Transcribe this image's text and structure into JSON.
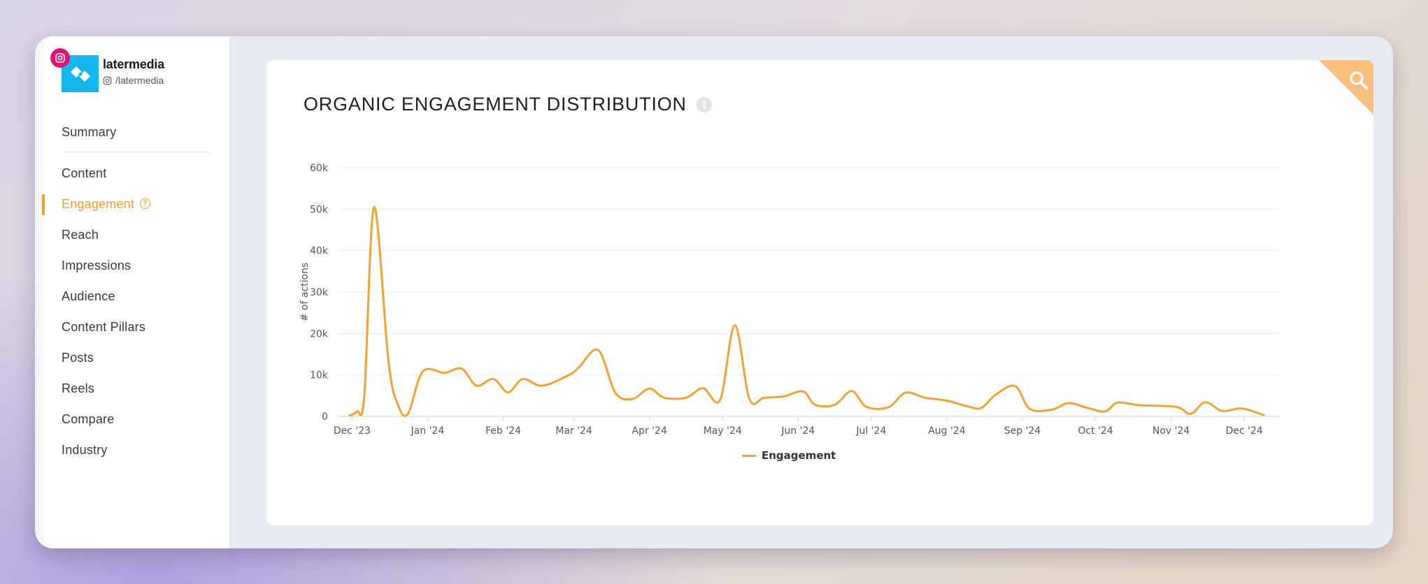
{
  "brand": {
    "name": "latermedia",
    "handle": "/latermedia"
  },
  "sidebar": {
    "items": [
      {
        "label": "Summary",
        "active": false
      },
      {
        "label": "Content",
        "active": false
      },
      {
        "label": "Engagement",
        "active": true,
        "help": true
      },
      {
        "label": "Reach",
        "active": false
      },
      {
        "label": "Impressions",
        "active": false
      },
      {
        "label": "Audience",
        "active": false
      },
      {
        "label": "Content Pillars",
        "active": false
      },
      {
        "label": "Posts",
        "active": false
      },
      {
        "label": "Reels",
        "active": false
      },
      {
        "label": "Compare",
        "active": false
      },
      {
        "label": "Industry",
        "active": false
      }
    ]
  },
  "main": {
    "title": "ORGANIC ENGAGEMENT DISTRIBUTION",
    "info_icon": "i"
  },
  "colors": {
    "accent": "#f29d33",
    "series": "#f5a32f",
    "brand": "#14b8ef",
    "instagram": "#e2136e"
  },
  "chart_data": {
    "type": "line",
    "ylabel": "# of actions",
    "ylim": [
      0,
      60000
    ],
    "yticks": [
      {
        "value": 0,
        "label": "0"
      },
      {
        "value": 10000,
        "label": "10k"
      },
      {
        "value": 20000,
        "label": "20k"
      },
      {
        "value": 30000,
        "label": "30k"
      },
      {
        "value": 40000,
        "label": "40k"
      },
      {
        "value": 50000,
        "label": "50k"
      },
      {
        "value": 60000,
        "label": "60k"
      }
    ],
    "xlim": [
      "2023-11-28",
      "2024-12-13"
    ],
    "xticks": [
      {
        "date": "2023-12-01",
        "label": "Dec '23"
      },
      {
        "date": "2024-01-01",
        "label": "Jan '24"
      },
      {
        "date": "2024-02-01",
        "label": "Feb '24"
      },
      {
        "date": "2024-03-01",
        "label": "Mar '24"
      },
      {
        "date": "2024-04-01",
        "label": "Apr '24"
      },
      {
        "date": "2024-05-01",
        "label": "May '24"
      },
      {
        "date": "2024-06-01",
        "label": "Jun '24"
      },
      {
        "date": "2024-07-01",
        "label": "Jul '24"
      },
      {
        "date": "2024-08-01",
        "label": "Aug '24"
      },
      {
        "date": "2024-09-01",
        "label": "Sep '24"
      },
      {
        "date": "2024-10-01",
        "label": "Oct '24"
      },
      {
        "date": "2024-11-01",
        "label": "Nov '24"
      },
      {
        "date": "2024-12-01",
        "label": "Dec '24"
      }
    ],
    "grid": true,
    "legend_position": "bottom-center",
    "series": [
      {
        "name": "Engagement",
        "points": [
          [
            "2023-11-30",
            200
          ],
          [
            "2023-12-03",
            1200
          ],
          [
            "2023-12-06",
            5000
          ],
          [
            "2023-12-10",
            50500
          ],
          [
            "2023-12-16",
            13000
          ],
          [
            "2023-12-20",
            2500
          ],
          [
            "2023-12-24",
            700
          ],
          [
            "2023-12-30",
            10800
          ],
          [
            "2024-01-08",
            10500
          ],
          [
            "2024-01-15",
            11500
          ],
          [
            "2024-01-21",
            7400
          ],
          [
            "2024-01-28",
            9000
          ],
          [
            "2024-02-03",
            5800
          ],
          [
            "2024-02-09",
            9000
          ],
          [
            "2024-02-17",
            7400
          ],
          [
            "2024-02-28",
            10000
          ],
          [
            "2024-03-03",
            11800
          ],
          [
            "2024-03-11",
            16000
          ],
          [
            "2024-03-18",
            5700
          ],
          [
            "2024-03-25",
            4200
          ],
          [
            "2024-04-01",
            6700
          ],
          [
            "2024-04-07",
            4500
          ],
          [
            "2024-04-16",
            4500
          ],
          [
            "2024-04-23",
            6800
          ],
          [
            "2024-04-30",
            4000
          ],
          [
            "2024-05-06",
            22000
          ],
          [
            "2024-05-12",
            4200
          ],
          [
            "2024-05-18",
            4500
          ],
          [
            "2024-05-26",
            4800
          ],
          [
            "2024-06-03",
            6000
          ],
          [
            "2024-06-08",
            2800
          ],
          [
            "2024-06-16",
            2800
          ],
          [
            "2024-06-23",
            6100
          ],
          [
            "2024-06-29",
            2300
          ],
          [
            "2024-07-08",
            2200
          ],
          [
            "2024-07-15",
            5700
          ],
          [
            "2024-07-23",
            4500
          ],
          [
            "2024-08-01",
            3800
          ],
          [
            "2024-08-09",
            2500
          ],
          [
            "2024-08-15",
            2000
          ],
          [
            "2024-08-21",
            5200
          ],
          [
            "2024-08-29",
            7300
          ],
          [
            "2024-09-04",
            1800
          ],
          [
            "2024-09-13",
            1600
          ],
          [
            "2024-09-20",
            3200
          ],
          [
            "2024-09-28",
            2000
          ],
          [
            "2024-10-05",
            1200
          ],
          [
            "2024-10-10",
            3300
          ],
          [
            "2024-10-19",
            2700
          ],
          [
            "2024-11-03",
            2300
          ],
          [
            "2024-11-09",
            600
          ],
          [
            "2024-11-15",
            3400
          ],
          [
            "2024-11-22",
            1300
          ],
          [
            "2024-11-30",
            1900
          ],
          [
            "2024-12-09",
            300
          ]
        ]
      }
    ]
  }
}
